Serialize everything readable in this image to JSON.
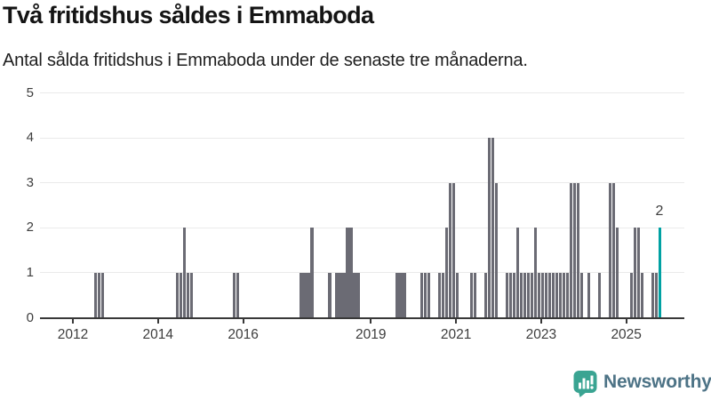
{
  "title": "Två fritidshus såldes i Emmaboda",
  "subtitle": "Antal sålda fritidshus i Emmaboda under de senaste tre månaderna.",
  "annotation": {
    "label": "2"
  },
  "logo": {
    "name": "Newsworthy"
  },
  "colors": {
    "bar": "#6b6b74",
    "highlight": "#00a1a3",
    "grid": "#eaeaea",
    "axis": "#383838",
    "label_text": "#3d3d3d",
    "title_text": "#141414",
    "logo_bg": "#3aa492",
    "logo_text": "#4d7386"
  },
  "chart_data": {
    "type": "bar",
    "title": "Två fritidshus såldes i Emmaboda",
    "subtitle": "Antal sålda fritidshus i Emmaboda under de senaste tre månaderna.",
    "xlabel": "",
    "ylabel": "",
    "ylim": [
      0,
      5
    ],
    "y_ticks": [
      0,
      1,
      2,
      3,
      4,
      5
    ],
    "x_ticks": [
      2012,
      2014,
      2016,
      2019,
      2021,
      2023,
      2025
    ],
    "x_range": [
      "2011-01",
      "2025-12"
    ],
    "grid": "horizontal",
    "legend": "none",
    "highlight_month": "2025-10",
    "highlight_value_label": "2",
    "series": [
      {
        "month": "2012-07",
        "value": 1
      },
      {
        "month": "2012-08",
        "value": 1
      },
      {
        "month": "2012-09",
        "value": 1
      },
      {
        "month": "2014-06",
        "value": 1
      },
      {
        "month": "2014-07",
        "value": 1
      },
      {
        "month": "2014-08",
        "value": 2
      },
      {
        "month": "2014-09",
        "value": 1
      },
      {
        "month": "2014-10",
        "value": 1
      },
      {
        "month": "2015-10",
        "value": 1
      },
      {
        "month": "2015-11",
        "value": 1
      },
      {
        "month": "2017-05",
        "value": 1
      },
      {
        "month": "2017-06",
        "value": 1
      },
      {
        "month": "2017-07",
        "value": 1
      },
      {
        "month": "2017-08",
        "value": 2
      },
      {
        "month": "2018-01",
        "value": 1
      },
      {
        "month": "2018-03",
        "value": 1
      },
      {
        "month": "2018-04",
        "value": 1
      },
      {
        "month": "2018-05",
        "value": 1
      },
      {
        "month": "2018-06",
        "value": 2
      },
      {
        "month": "2018-07",
        "value": 2
      },
      {
        "month": "2018-08",
        "value": 1
      },
      {
        "month": "2018-09",
        "value": 1
      },
      {
        "month": "2019-08",
        "value": 1
      },
      {
        "month": "2019-09",
        "value": 1
      },
      {
        "month": "2019-10",
        "value": 1
      },
      {
        "month": "2020-03",
        "value": 1
      },
      {
        "month": "2020-04",
        "value": 1
      },
      {
        "month": "2020-05",
        "value": 1
      },
      {
        "month": "2020-08",
        "value": 1
      },
      {
        "month": "2020-09",
        "value": 1
      },
      {
        "month": "2020-10",
        "value": 2
      },
      {
        "month": "2020-11",
        "value": 3
      },
      {
        "month": "2020-12",
        "value": 3
      },
      {
        "month": "2021-01",
        "value": 1
      },
      {
        "month": "2021-05",
        "value": 1
      },
      {
        "month": "2021-06",
        "value": 1
      },
      {
        "month": "2021-09",
        "value": 1
      },
      {
        "month": "2021-10",
        "value": 4
      },
      {
        "month": "2021-11",
        "value": 4
      },
      {
        "month": "2021-12",
        "value": 3
      },
      {
        "month": "2022-03",
        "value": 1
      },
      {
        "month": "2022-04",
        "value": 1
      },
      {
        "month": "2022-05",
        "value": 1
      },
      {
        "month": "2022-06",
        "value": 2
      },
      {
        "month": "2022-07",
        "value": 1
      },
      {
        "month": "2022-08",
        "value": 1
      },
      {
        "month": "2022-09",
        "value": 1
      },
      {
        "month": "2022-10",
        "value": 1
      },
      {
        "month": "2022-11",
        "value": 2
      },
      {
        "month": "2022-12",
        "value": 1
      },
      {
        "month": "2023-01",
        "value": 1
      },
      {
        "month": "2023-02",
        "value": 1
      },
      {
        "month": "2023-03",
        "value": 1
      },
      {
        "month": "2023-04",
        "value": 1
      },
      {
        "month": "2023-05",
        "value": 1
      },
      {
        "month": "2023-06",
        "value": 1
      },
      {
        "month": "2023-07",
        "value": 1
      },
      {
        "month": "2023-08",
        "value": 1
      },
      {
        "month": "2023-09",
        "value": 3
      },
      {
        "month": "2023-10",
        "value": 3
      },
      {
        "month": "2023-11",
        "value": 3
      },
      {
        "month": "2023-12",
        "value": 1
      },
      {
        "month": "2024-02",
        "value": 1
      },
      {
        "month": "2024-05",
        "value": 1
      },
      {
        "month": "2024-08",
        "value": 3
      },
      {
        "month": "2024-09",
        "value": 3
      },
      {
        "month": "2024-10",
        "value": 2
      },
      {
        "month": "2025-02",
        "value": 1
      },
      {
        "month": "2025-03",
        "value": 2
      },
      {
        "month": "2025-04",
        "value": 2
      },
      {
        "month": "2025-05",
        "value": 1
      },
      {
        "month": "2025-08",
        "value": 1
      },
      {
        "month": "2025-09",
        "value": 1
      },
      {
        "month": "2025-10",
        "value": 2
      }
    ]
  }
}
